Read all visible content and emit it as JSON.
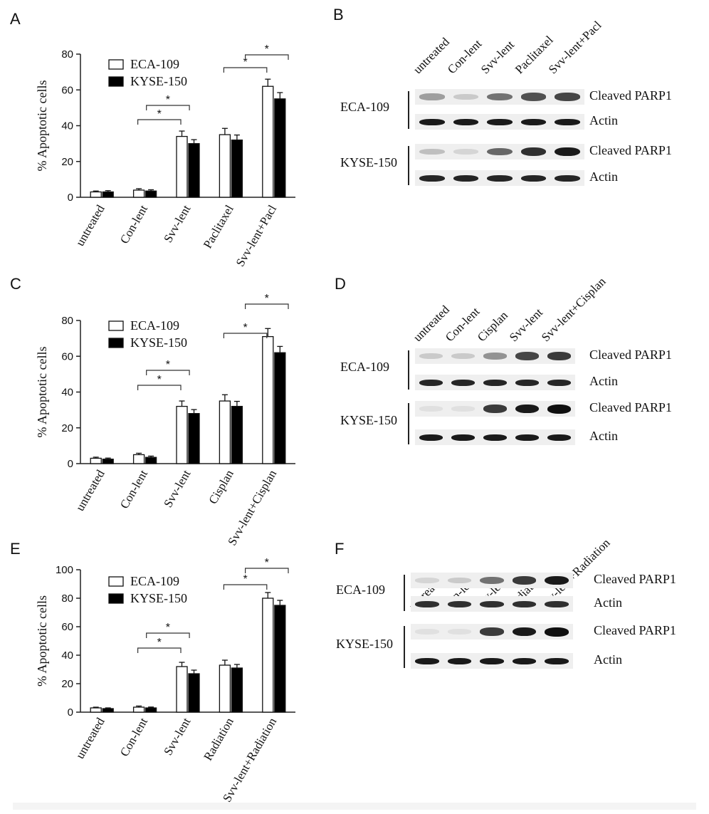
{
  "panels": {
    "A": "A",
    "B": "B",
    "C": "C",
    "D": "D",
    "E": "E",
    "F": "F"
  },
  "chart_data": [
    {
      "type": "bar",
      "panel": "A",
      "ylabel": "% Apoptotic cells",
      "ylim": [
        0,
        80
      ],
      "yticks": [
        "0",
        "20",
        "40",
        "60",
        "80"
      ],
      "categories": [
        "untreated",
        "Con-lent",
        "Svv-lent",
        "Paclitaxel",
        "Svv-lent+Pacl"
      ],
      "series": [
        {
          "name": "ECA-109",
          "values": [
            3,
            4,
            34,
            35,
            62
          ],
          "errors": [
            0.5,
            0.8,
            3,
            3.5,
            4
          ],
          "color": "#ffffff"
        },
        {
          "name": "KYSE-150",
          "values": [
            3,
            3.5,
            30,
            32,
            55
          ],
          "errors": [
            0.7,
            0.7,
            2.2,
            2.8,
            3.5
          ],
          "color": "#000000"
        }
      ],
      "legend_position": "top-left",
      "significance": [
        {
          "from": 1,
          "to": 2,
          "label": "*"
        },
        {
          "from": 1.2,
          "to": 2.2,
          "label": "*"
        },
        {
          "from": 3,
          "to": 4,
          "label": "*"
        },
        {
          "from": 3.5,
          "to": 4.5,
          "label": "*"
        }
      ]
    },
    {
      "type": "bar",
      "panel": "C",
      "ylabel": "% Apoptotic cells",
      "ylim": [
        0,
        80
      ],
      "yticks": [
        "0",
        "20",
        "40",
        "60",
        "80"
      ],
      "categories": [
        "untreated",
        "Con-lent",
        "Svv-lent",
        "Cisplan",
        "Svv-lent+Cisplan"
      ],
      "series": [
        {
          "name": "ECA-109",
          "values": [
            3,
            5,
            32,
            35,
            71
          ],
          "errors": [
            0.6,
            0.8,
            3,
            3.5,
            4.5
          ],
          "color": "#ffffff"
        },
        {
          "name": "KYSE-150",
          "values": [
            2.5,
            3.5,
            28,
            32,
            62
          ],
          "errors": [
            0.6,
            0.7,
            2.2,
            2.8,
            3.5
          ],
          "color": "#000000"
        }
      ],
      "legend_position": "top-left",
      "significance": [
        {
          "from": 1,
          "to": 2,
          "label": "*"
        },
        {
          "from": 1.2,
          "to": 2.2,
          "label": "*"
        },
        {
          "from": 3,
          "to": 4,
          "label": "*"
        },
        {
          "from": 3.5,
          "to": 4.5,
          "label": "*"
        }
      ]
    },
    {
      "type": "bar",
      "panel": "E",
      "ylabel": "% Apoptotic cells",
      "ylim": [
        0,
        100
      ],
      "yticks": [
        "0",
        "20",
        "40",
        "60",
        "80",
        "100"
      ],
      "categories": [
        "untreated",
        "Con-lent",
        "Svv-lent",
        "Radiation",
        "Svv-lent+Radiation"
      ],
      "series": [
        {
          "name": "ECA-109",
          "values": [
            3,
            3.5,
            32,
            33,
            80
          ],
          "errors": [
            0.5,
            0.8,
            3,
            3.5,
            4
          ],
          "color": "#ffffff"
        },
        {
          "name": "KYSE-150",
          "values": [
            2.5,
            3,
            27,
            31,
            75
          ],
          "errors": [
            0.5,
            0.6,
            2.5,
            2.5,
            3.5
          ],
          "color": "#000000"
        }
      ],
      "legend_position": "top-left",
      "significance": [
        {
          "from": 1,
          "to": 2,
          "label": "*"
        },
        {
          "from": 1.2,
          "to": 2.2,
          "label": "*"
        },
        {
          "from": 3,
          "to": 4,
          "label": "*"
        },
        {
          "from": 3.5,
          "to": 4.5,
          "label": "*"
        }
      ]
    }
  ],
  "blots": [
    {
      "panel": "B",
      "lanes": [
        "untreated",
        "Con-lent",
        "Svv-lent",
        "Paclitaxel",
        "Svv-lent+Pacl"
      ],
      "cells": [
        {
          "name": "ECA-109",
          "rows": [
            {
              "label": "Cleaved PARP1",
              "intensity": [
                0.35,
                0.15,
                0.55,
                0.7,
                0.75
              ]
            },
            {
              "label": "Actin",
              "intensity": [
                0.95,
                0.95,
                0.95,
                0.95,
                0.95
              ]
            }
          ]
        },
        {
          "name": "KYSE-150",
          "rows": [
            {
              "label": "Cleaved PARP1",
              "intensity": [
                0.2,
                0.1,
                0.6,
                0.85,
                0.95
              ]
            },
            {
              "label": "Actin",
              "intensity": [
                0.9,
                0.9,
                0.9,
                0.9,
                0.9
              ]
            }
          ]
        }
      ]
    },
    {
      "panel": "D",
      "lanes": [
        "untreated",
        "Con-lent",
        "Cisplan",
        "Svv-lent",
        "Svv-lent+Cisplan"
      ],
      "cells": [
        {
          "name": "ECA-109",
          "rows": [
            {
              "label": "Cleaved PARP1",
              "intensity": [
                0.15,
                0.15,
                0.4,
                0.75,
                0.8
              ]
            },
            {
              "label": "Actin",
              "intensity": [
                0.9,
                0.9,
                0.9,
                0.9,
                0.9
              ]
            }
          ]
        },
        {
          "name": "KYSE-150",
          "rows": [
            {
              "label": "Cleaved PARP1",
              "intensity": [
                0.05,
                0.05,
                0.8,
                0.95,
                1.0
              ]
            },
            {
              "label": "Actin",
              "intensity": [
                0.95,
                0.95,
                0.95,
                0.95,
                0.95
              ]
            }
          ]
        }
      ]
    },
    {
      "panel": "F",
      "lanes": [
        "untreated",
        "Con-lent",
        "Svv-lent",
        "Radiation",
        "Svv-lent+Radiation"
      ],
      "cells": [
        {
          "name": "ECA-109",
          "rows": [
            {
              "label": "Cleaved PARP1",
              "intensity": [
                0.1,
                0.15,
                0.55,
                0.8,
                0.95
              ]
            },
            {
              "label": "Actin",
              "intensity": [
                0.85,
                0.85,
                0.85,
                0.85,
                0.85
              ]
            }
          ]
        },
        {
          "name": "KYSE-150",
          "rows": [
            {
              "label": "Cleaved PARP1",
              "intensity": [
                0.05,
                0.05,
                0.8,
                0.95,
                1.0
              ]
            },
            {
              "label": "Actin",
              "intensity": [
                0.95,
                0.95,
                0.95,
                0.95,
                0.95
              ]
            }
          ]
        }
      ]
    }
  ]
}
